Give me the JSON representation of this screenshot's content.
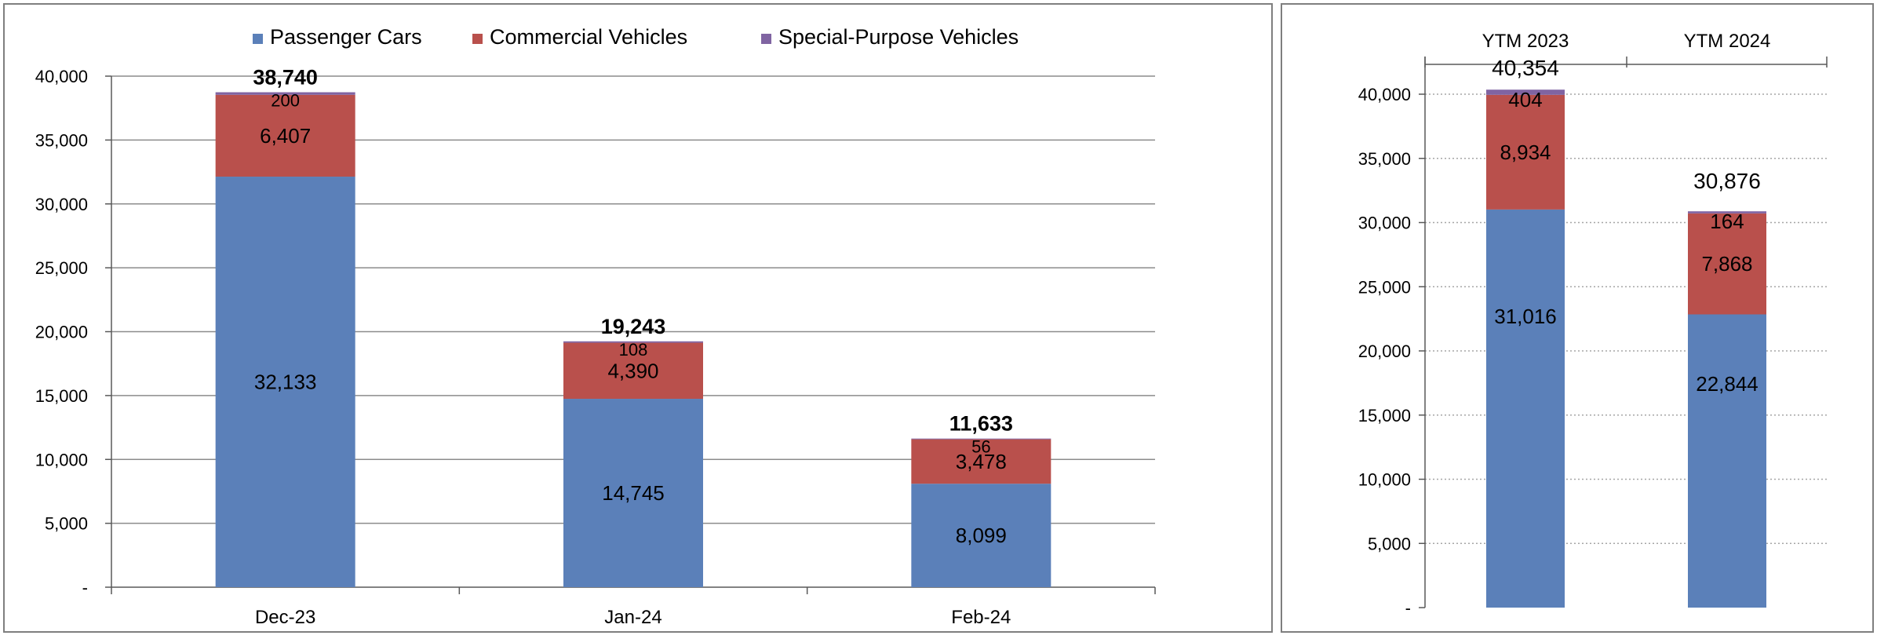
{
  "chart_data": [
    {
      "type": "bar",
      "stacked": true,
      "categories": [
        "Dec-23",
        "Jan-24",
        "Feb-24"
      ],
      "series": [
        {
          "name": "Passenger Cars",
          "color": "#5b80b9",
          "values": [
            32133,
            14745,
            8099
          ],
          "labels": [
            "32,133",
            "14,745",
            "8,099"
          ]
        },
        {
          "name": "Commercial Vehicles",
          "color": "#b9504c",
          "values": [
            6407,
            4390,
            3478
          ],
          "labels": [
            "6,407",
            "4,390",
            "3,478"
          ]
        },
        {
          "name": "Special-Purpose Vehicles",
          "color": "#8064a2",
          "values": [
            200,
            108,
            56
          ],
          "labels": [
            "200",
            "108",
            "56"
          ]
        }
      ],
      "totals": [
        38740,
        19243,
        11633
      ],
      "total_labels": [
        "38,740",
        "19,243",
        "11,633"
      ],
      "ylim": [
        0,
        40000
      ],
      "yticks": [
        0,
        5000,
        10000,
        15000,
        20000,
        25000,
        30000,
        35000,
        40000
      ],
      "ytick_labels": [
        "-",
        "5,000",
        "10,000",
        "15,000",
        "20,000",
        "25,000",
        "30,000",
        "35,000",
        "40,000"
      ],
      "grid": true,
      "legend": "top"
    },
    {
      "type": "bar",
      "stacked": true,
      "categories": [
        "YTM 2023",
        "YTM 2024"
      ],
      "series": [
        {
          "name": "Passenger Cars",
          "color": "#5b80b9",
          "values": [
            31016,
            22844
          ],
          "labels": [
            "31,016",
            "22,844"
          ]
        },
        {
          "name": "Commercial Vehicles",
          "color": "#b9504c",
          "values": [
            8934,
            7868
          ],
          "labels": [
            "8,934",
            "7,868"
          ]
        },
        {
          "name": "Special-Purpose Vehicles",
          "color": "#8064a2",
          "values": [
            404,
            164
          ],
          "labels": [
            "404",
            "164"
          ]
        }
      ],
      "totals": [
        40354,
        30876
      ],
      "total_labels": [
        "40,354",
        "30,876"
      ],
      "ylim": [
        0,
        40000
      ],
      "yticks": [
        0,
        5000,
        10000,
        15000,
        20000,
        25000,
        30000,
        35000,
        40000
      ],
      "ytick_labels": [
        "-",
        "5,000",
        "10,000",
        "15,000",
        "20,000",
        "25,000",
        "30,000",
        "35,000",
        "40,000"
      ],
      "grid": "dotted",
      "category_axis": "top"
    }
  ]
}
